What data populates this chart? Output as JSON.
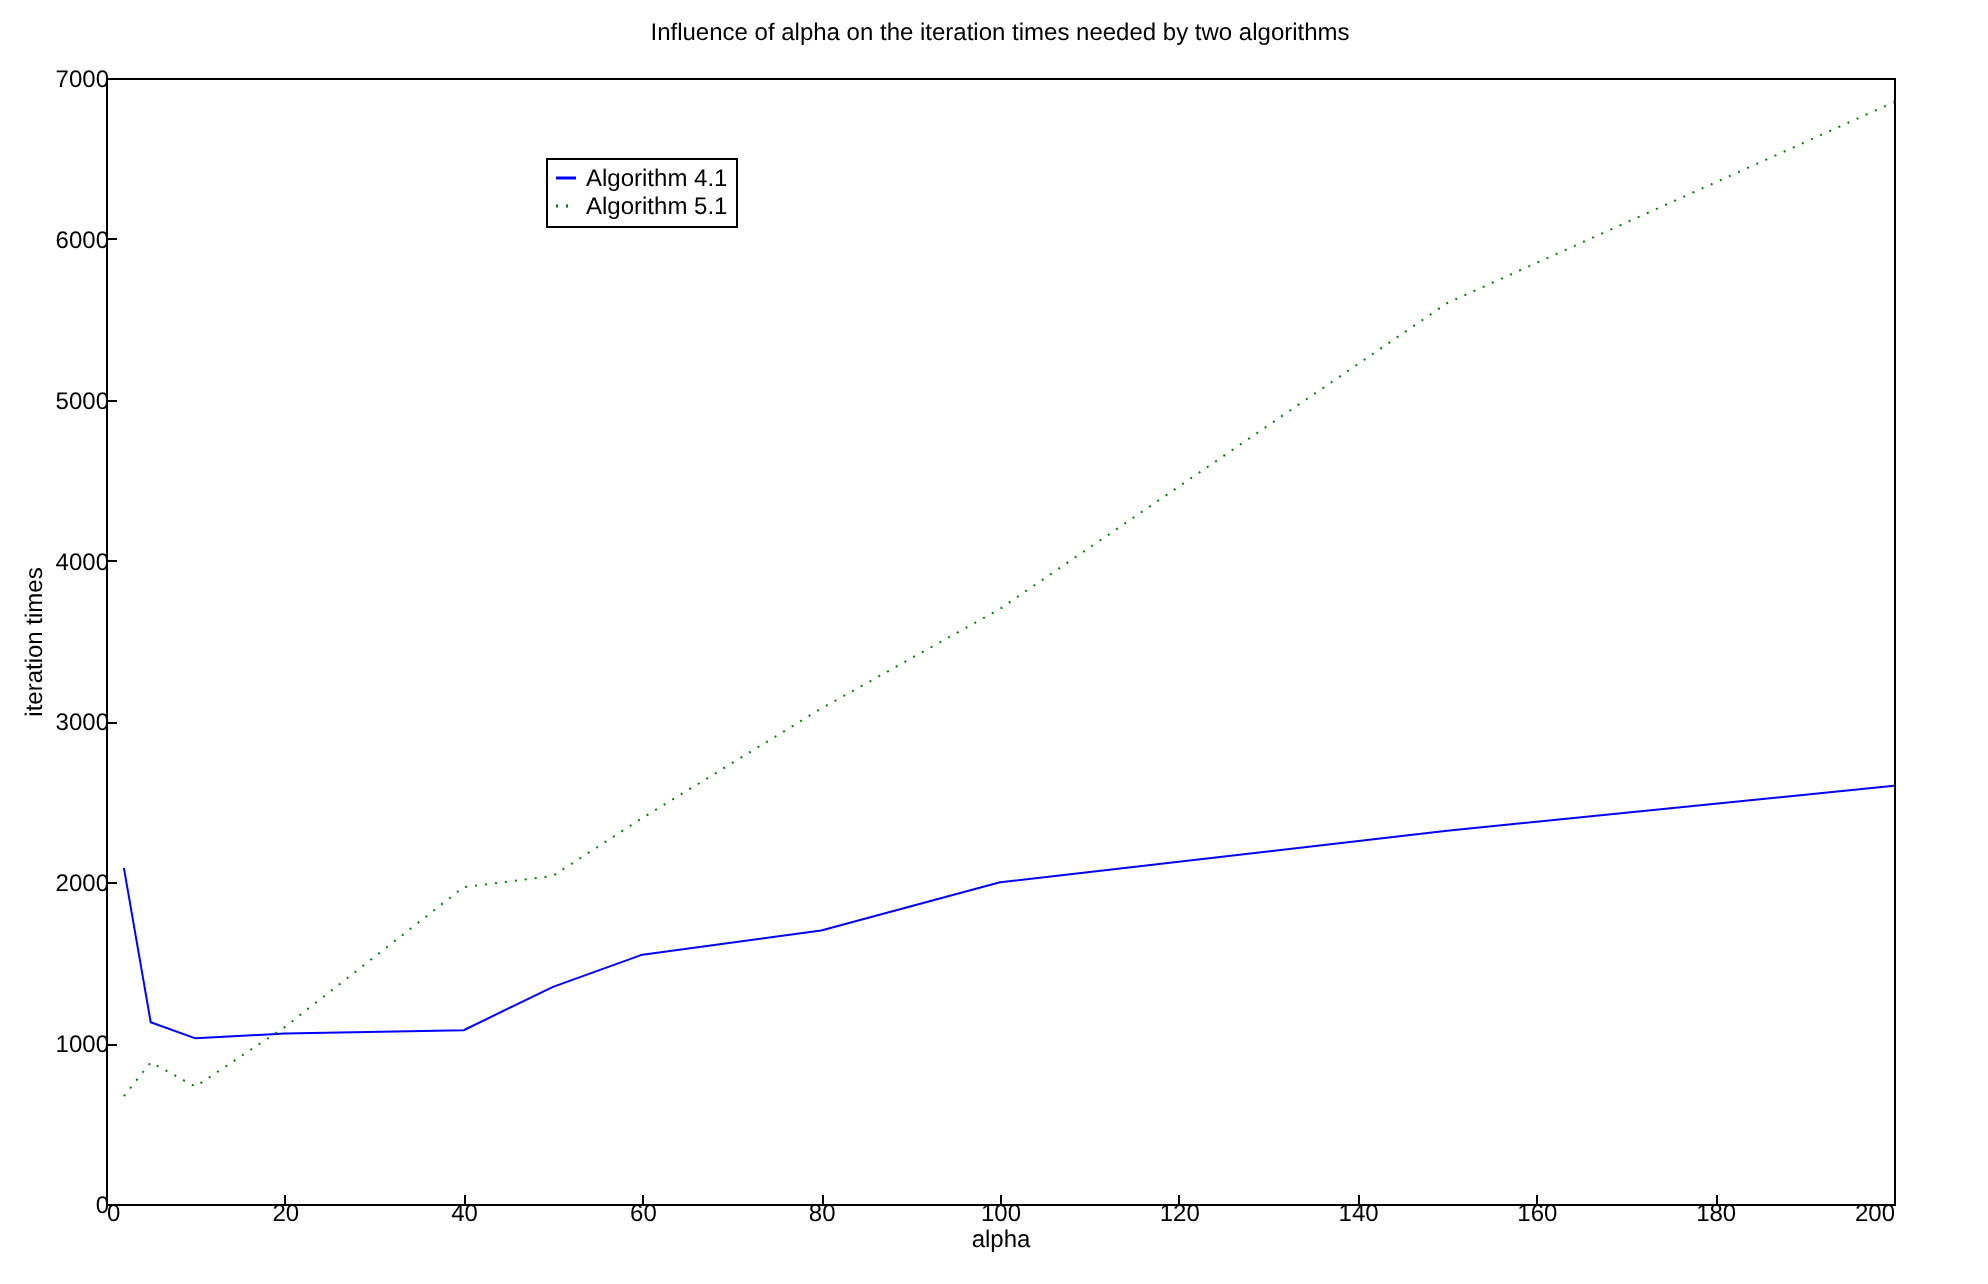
{
  "chart_data": {
    "type": "line",
    "title": "Influence of alpha on the iteration times needed by two algorithms",
    "xlabel": "alpha",
    "ylabel": "iteration times",
    "x": [
      2,
      5,
      10,
      20,
      40,
      50,
      60,
      80,
      100,
      150,
      200
    ],
    "series": [
      {
        "name": "Algorithm 4.1",
        "color": "#0000ff",
        "line_style": "solid",
        "values": [
          2090,
          1130,
          1030,
          1060,
          1080,
          1350,
          1550,
          1700,
          2000,
          2320,
          2600
        ]
      },
      {
        "name": "Algorithm 5.1",
        "color": "#008000",
        "line_style": "dotted",
        "values": [
          670,
          880,
          730,
          1100,
          1970,
          2040,
          2400,
          3080,
          3700,
          5600,
          6850
        ]
      }
    ],
    "xlim": [
      0,
      200
    ],
    "xticks": [
      0,
      20,
      40,
      60,
      80,
      100,
      120,
      140,
      160,
      180,
      200
    ],
    "ylim": [
      0,
      7000
    ],
    "yticks": [
      0,
      1000,
      2000,
      3000,
      4000,
      5000,
      6000,
      7000
    ],
    "legend": "top left",
    "grid": false,
    "marker": "none"
  }
}
